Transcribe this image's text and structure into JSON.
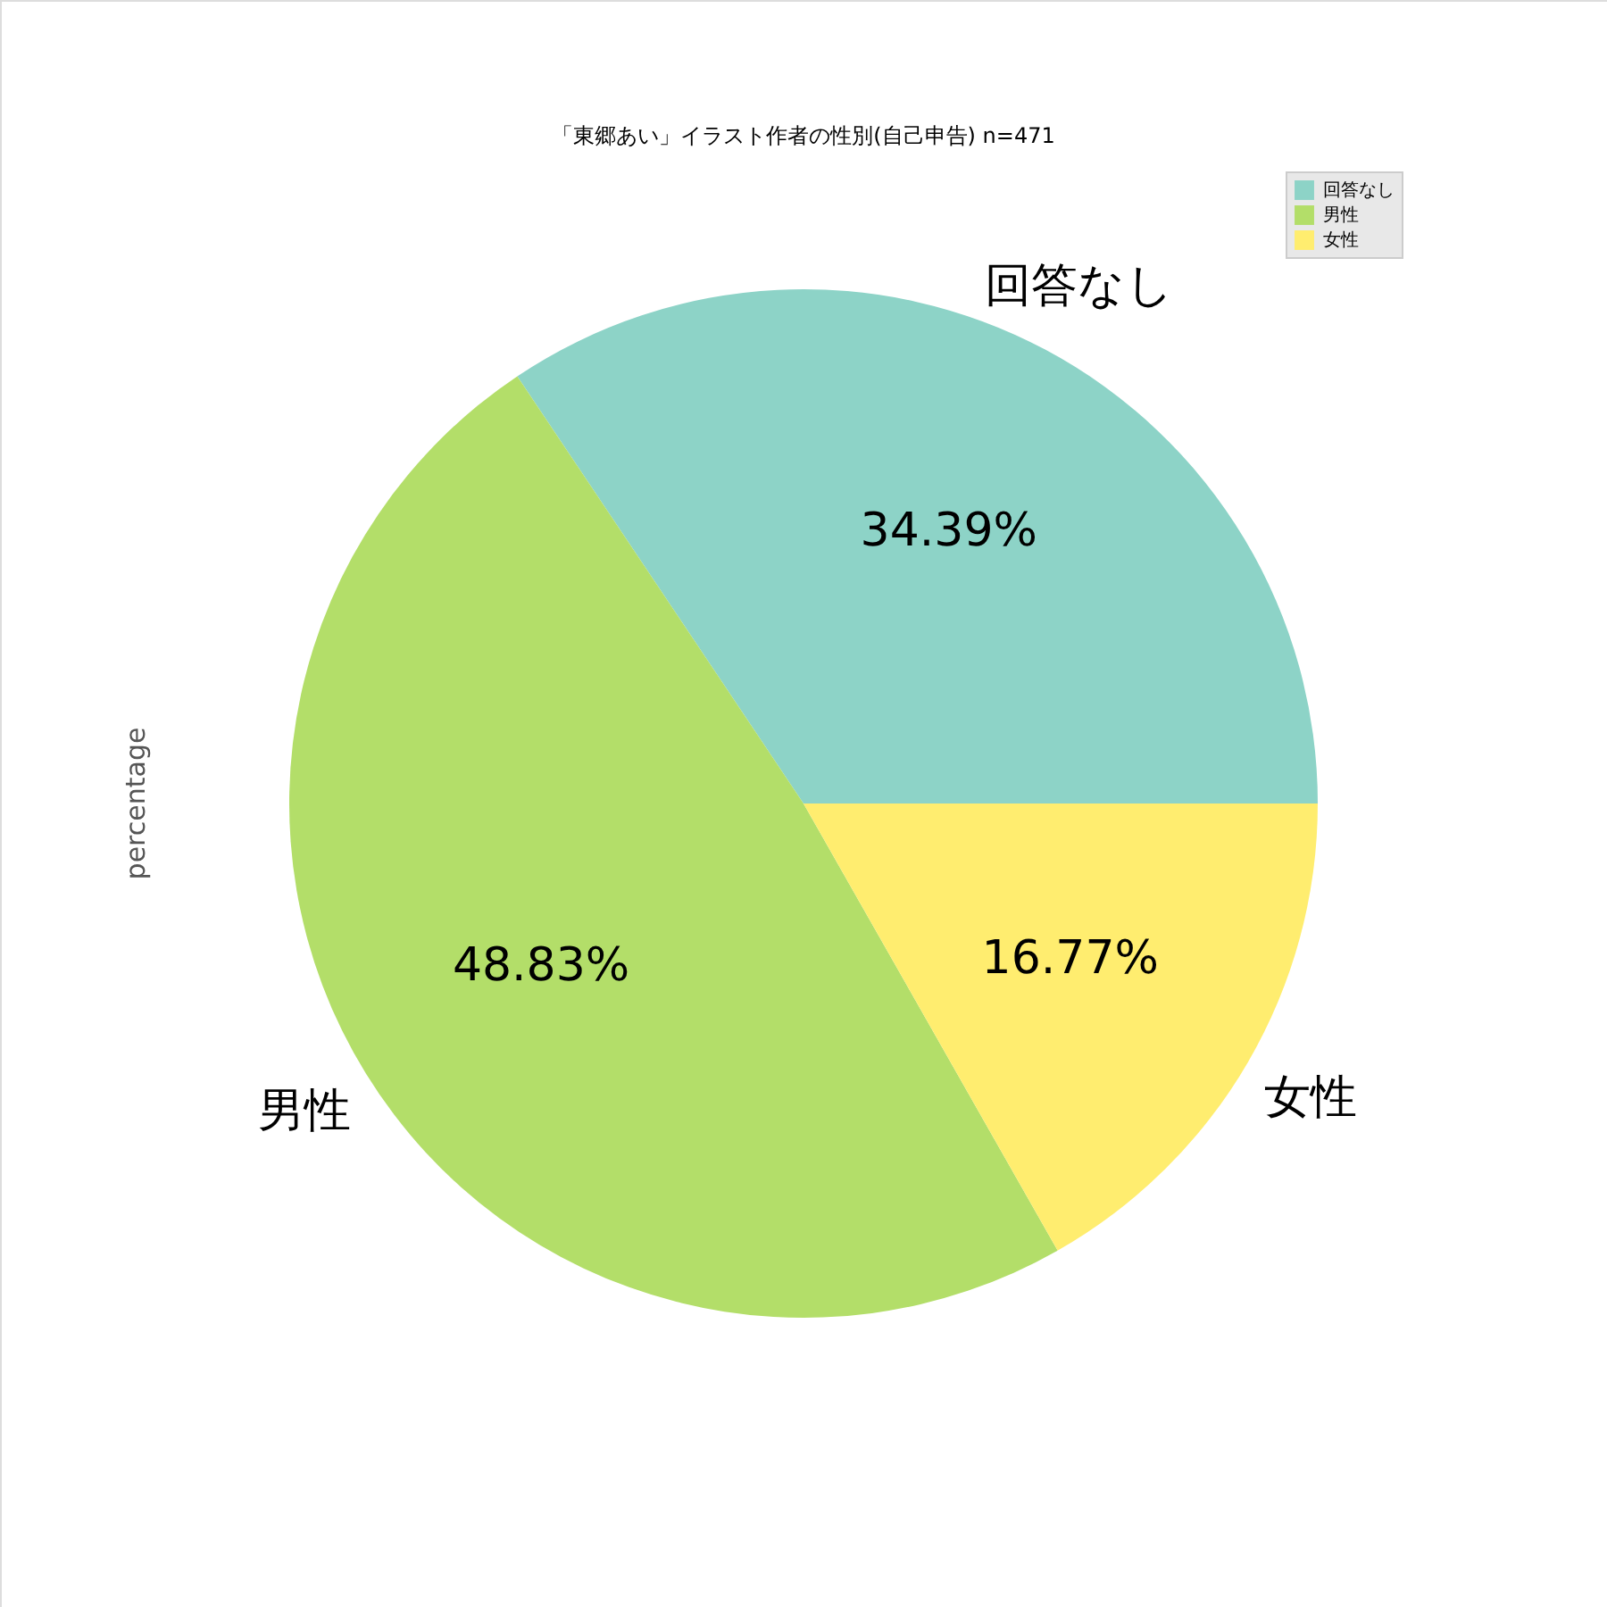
{
  "chart_data": {
    "type": "pie",
    "title": "「東郷あい」イラスト作者の性別(自己申告) n=471",
    "ylabel": "percentage",
    "categories": [
      "回答なし",
      "男性",
      "女性"
    ],
    "values": [
      34.39,
      48.83,
      16.77
    ],
    "colors": [
      "#8dd3c7",
      "#b3de69",
      "#ffed6f"
    ],
    "value_labels": [
      "34.39%",
      "48.83%",
      "16.77%"
    ],
    "legend": "top right"
  }
}
